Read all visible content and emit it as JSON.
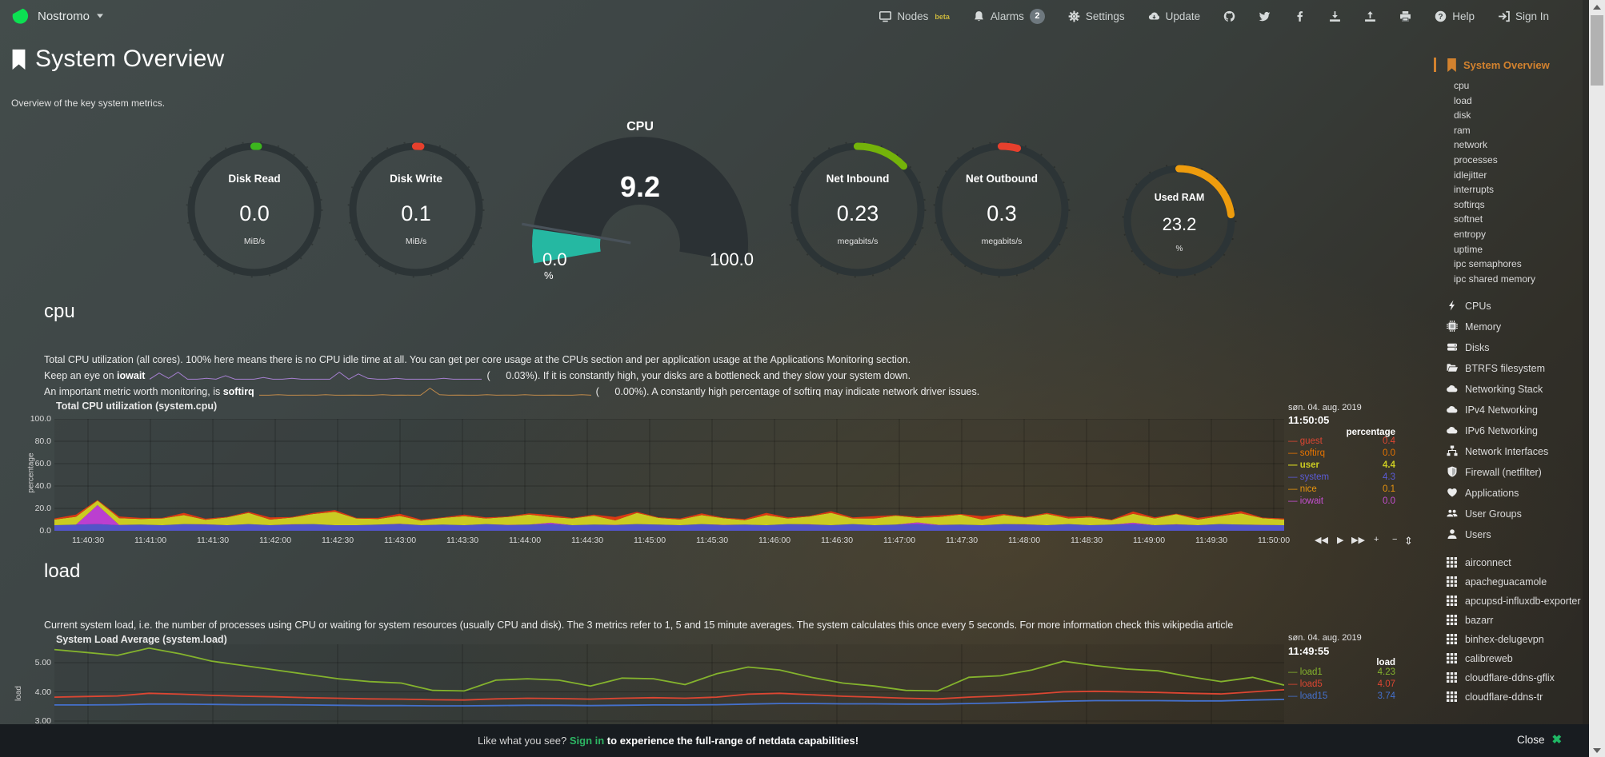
{
  "navbar": {
    "hostname": "Nostromo",
    "nodes": {
      "label": "Nodes",
      "beta": "beta"
    },
    "alarms": {
      "label": "Alarms",
      "count": "2"
    },
    "settings": {
      "label": "Settings"
    },
    "update": {
      "label": "Update"
    },
    "help": {
      "label": "Help"
    },
    "signin": {
      "label": "Sign In"
    }
  },
  "page": {
    "title": "System Overview",
    "subtitle": "Overview of the key system metrics."
  },
  "gauges": [
    {
      "label": "Disk Read",
      "value": "0.0",
      "unit": "MiB/s",
      "color": "#3cb51e",
      "percent": 1
    },
    {
      "label": "Disk Write",
      "value": "0.1",
      "unit": "MiB/s",
      "color": "#e6402d",
      "percent": 1.2
    },
    {
      "label": "Net Inbound",
      "value": "0.23",
      "unit": "megabits/s",
      "color": "#74b30a",
      "percent": 13
    },
    {
      "label": "Net Outbound",
      "value": "0.3",
      "unit": "megabits/s",
      "color": "#e6402d",
      "percent": 4
    },
    {
      "label": "Used RAM",
      "value": "23.2",
      "unit": "%",
      "color": "#ee9c0d",
      "percent": 23.2
    }
  ],
  "cpu_gauge": {
    "title": "CPU",
    "value": "9.2",
    "min": "0.0",
    "max": "100.0",
    "unit": "%",
    "percent": 9.2,
    "color": "#25b8a2"
  },
  "cpu_section": {
    "heading": "cpu",
    "desc1": "Total CPU utilization (all cores). 100% here means there is no CPU idle time at all. You can get per core usage at the CPUs section and per application usage at the Applications Monitoring section.",
    "line2": {
      "pre": "Keep an eye on ",
      "keyword": "iowait",
      "mid": "(",
      "value": "0.03",
      "post": "%). If it is constantly high, your disks are a bottleneck and they slow your system down."
    },
    "line3": {
      "pre": "An important metric worth monitoring, is ",
      "keyword": "softirq",
      "mid": "(",
      "value": "0.00",
      "post": "%). A constantly high percentage of softirq may indicate network driver issues."
    },
    "spark_iowait": {
      "color": "#a57fd0",
      "values": [
        0.1,
        0.8,
        0.2,
        0.9,
        0.1,
        0.1,
        0.2,
        0.1,
        0.5,
        0.1,
        0.1,
        0.1,
        0.3,
        0.1,
        0.1,
        0.2,
        0.1,
        0.1,
        0.1,
        0.1,
        0.9,
        0.1,
        0.7,
        0.2,
        0.1,
        0.1,
        0.2,
        0.1,
        0.1,
        0.1,
        0.1,
        0.2,
        0.1,
        0.1,
        0.1,
        0.1
      ]
    },
    "spark_softirq": {
      "color": "#c08a4a",
      "values": [
        0.1,
        0.1,
        0.15,
        0.1,
        0.1,
        0.12,
        0.1,
        0.15,
        0.1,
        0.1,
        0.12,
        0.1,
        0.1,
        0.15,
        0.1,
        0.12,
        0.1,
        0.1,
        0.9,
        0.15,
        0.1,
        0.12,
        0.1,
        0.1,
        0.15,
        0.1,
        0.12,
        0.1,
        0.15,
        0.1,
        0.1,
        0.12,
        0.1,
        0.1,
        0.15,
        0.1
      ]
    }
  },
  "load_section": {
    "heading": "load",
    "desc1": "Current system load, i.e. the number of processes using CPU or waiting for system resources (usually CPU and disk). The 3 metrics refer to 1, 5 and 15 minute averages. The system calculates this once every 5 seconds. For more information check this wikipedia article"
  },
  "chart_data": [
    {
      "id": "system.cpu",
      "type": "area",
      "stacked": true,
      "title": "Total CPU utilization (system.cpu)",
      "ylabel": "percentage",
      "unit_header": "percentage",
      "date": "søn. 04. aug. 2019",
      "time": "11:50:05",
      "ylim": [
        0,
        100
      ],
      "yticks": [
        {
          "v": 100,
          "label": "100.0"
        },
        {
          "v": 80,
          "label": "80.0"
        },
        {
          "v": 60,
          "label": "60.0"
        },
        {
          "v": 40,
          "label": "40.0"
        },
        {
          "v": 20,
          "label": "20.0"
        },
        {
          "v": 0,
          "label": "0.0"
        }
      ],
      "xticks": [
        "11:40:30",
        "11:41:00",
        "11:41:30",
        "11:42:00",
        "11:42:30",
        "11:43:00",
        "11:43:30",
        "11:44:00",
        "11:44:30",
        "11:45:00",
        "11:45:30",
        "11:46:00",
        "11:46:30",
        "11:47:00",
        "11:47:30",
        "11:48:00",
        "11:48:30",
        "11:49:00",
        "11:49:30",
        "11:50:00"
      ],
      "series": [
        {
          "name": "system",
          "color": "#5254c8",
          "values": [
            5,
            5.5,
            6,
            5,
            5.5,
            5,
            6,
            5.5,
            5,
            6,
            5,
            5.5,
            6,
            5,
            5,
            5.5,
            6,
            5,
            5.5,
            5,
            6,
            5,
            5.5,
            6,
            5,
            5.5,
            5,
            6,
            5.5,
            5,
            6,
            5,
            5.5,
            5,
            6,
            5.5,
            5,
            6,
            5,
            5.5,
            6,
            5,
            5.5,
            5,
            6,
            5.5,
            5,
            6,
            5,
            5.5,
            6,
            5,
            5.5,
            5,
            6,
            5.5,
            5,
            5
          ]
        },
        {
          "name": "iowait",
          "color": "#bb3fd0",
          "values": [
            0,
            0,
            17,
            0.3,
            0,
            0,
            0,
            0.3,
            0,
            0,
            0,
            0.3,
            0,
            0,
            0,
            0,
            0.3,
            0,
            0,
            0,
            0,
            0.3,
            0,
            1.2,
            0,
            0,
            0.3,
            0,
            0,
            0,
            0,
            0.3,
            0,
            0,
            0,
            0.3,
            0,
            0,
            0,
            0,
            1.5,
            0.3,
            0,
            0,
            0,
            0.3,
            0,
            0,
            0,
            0,
            1.2,
            0,
            0.3,
            0,
            0,
            0,
            0.3,
            0
          ]
        },
        {
          "name": "user",
          "color": "#cbcb22",
          "values": [
            5,
            7,
            4,
            6,
            5,
            6,
            8,
            4,
            7,
            10,
            5,
            6,
            9,
            12,
            6,
            5,
            7,
            4,
            6,
            8,
            5,
            7,
            9,
            5,
            6,
            8,
            4,
            10,
            6,
            5,
            8,
            6,
            4,
            9,
            5,
            7,
            11,
            5,
            6,
            8,
            4,
            7,
            9,
            5,
            8,
            6,
            10,
            5,
            7,
            4,
            8,
            6,
            9,
            5,
            7,
            10,
            6,
            5
          ]
        },
        {
          "name": "guest",
          "color": "#dc3912",
          "values": [
            1,
            2,
            0.5,
            1.5,
            1,
            0.5,
            2,
            1,
            0.5,
            1,
            2,
            0.5,
            1,
            1.5,
            0.5,
            1,
            2,
            1,
            0.5,
            1.5,
            1,
            0.5,
            1,
            2,
            0.5,
            1,
            3,
            1,
            0.5,
            1,
            1.5,
            0.5,
            1,
            2,
            1,
            0.5,
            1.5,
            1,
            2,
            0.5,
            1,
            1.5,
            0.5,
            3,
            1,
            0.5,
            1,
            1.5,
            1,
            0.5,
            2,
            1,
            0.5,
            1.5,
            1,
            2,
            0.5,
            1
          ]
        }
      ],
      "legend": [
        {
          "name": "guest",
          "value": "0.4",
          "color": "#dc4632",
          "bold": false
        },
        {
          "name": "softirq",
          "value": "0.0",
          "color": "#e67300",
          "bold": false
        },
        {
          "name": "user",
          "value": "4.4",
          "color": "#cbcb22",
          "bold": true
        },
        {
          "name": "system",
          "value": "4.3",
          "color": "#5b5bd6",
          "bold": false
        },
        {
          "name": "nice",
          "value": "0.1",
          "color": "#e8940e",
          "bold": false
        },
        {
          "name": "iowait",
          "value": "0.0",
          "color": "#c44fd0",
          "bold": false
        }
      ],
      "toolbar": [
        "◀◀",
        "▶",
        "▶▶",
        "+",
        "−"
      ],
      "resize_handle": "⇕"
    },
    {
      "id": "system.load",
      "type": "line",
      "stacked": false,
      "title": "System Load Average (system.load)",
      "ylabel": "load",
      "unit_header": "load",
      "date": "søn. 04. aug. 2019",
      "time": "11:49:55",
      "ylim": [
        2.9,
        5.65
      ],
      "yticks": [
        {
          "v": 5,
          "label": "5.00"
        },
        {
          "v": 4,
          "label": "4.00"
        },
        {
          "v": 3,
          "label": "3.00"
        }
      ],
      "xticks": [],
      "series": [
        {
          "name": "load1",
          "color": "#84b32d",
          "values": [
            5.45,
            5.35,
            5.25,
            5.5,
            5.3,
            5.05,
            4.9,
            4.75,
            4.6,
            4.45,
            4.35,
            4.3,
            4.05,
            4.03,
            4.4,
            4.45,
            4.4,
            4.2,
            4.47,
            4.45,
            4.25,
            4.62,
            4.85,
            4.75,
            4.5,
            4.3,
            4.2,
            4.05,
            4.03,
            4.5,
            4.55,
            4.75,
            5.05,
            4.9,
            4.78,
            4.72,
            4.52,
            4.35,
            4.5,
            4.23
          ]
        },
        {
          "name": "load5",
          "color": "#dc4632",
          "values": [
            3.82,
            3.84,
            3.86,
            3.95,
            3.92,
            3.88,
            3.85,
            3.83,
            3.8,
            3.78,
            3.76,
            3.75,
            3.73,
            3.72,
            3.76,
            3.78,
            3.77,
            3.75,
            3.78,
            3.8,
            3.78,
            3.82,
            3.92,
            3.95,
            3.9,
            3.85,
            3.82,
            3.78,
            3.76,
            3.82,
            3.86,
            3.92,
            4.0,
            4.02,
            4.0,
            3.98,
            3.95,
            3.93,
            4.0,
            4.07
          ]
        },
        {
          "name": "load15",
          "color": "#4470cc",
          "values": [
            3.55,
            3.55,
            3.56,
            3.58,
            3.58,
            3.57,
            3.56,
            3.56,
            3.55,
            3.54,
            3.53,
            3.53,
            3.52,
            3.52,
            3.53,
            3.54,
            3.54,
            3.53,
            3.54,
            3.55,
            3.55,
            3.56,
            3.58,
            3.6,
            3.6,
            3.59,
            3.59,
            3.58,
            3.58,
            3.6,
            3.62,
            3.65,
            3.68,
            3.7,
            3.7,
            3.7,
            3.69,
            3.69,
            3.72,
            3.74
          ]
        }
      ],
      "legend": [
        {
          "name": "load1",
          "value": "4.23",
          "color": "#84b32d",
          "bold": false
        },
        {
          "name": "load5",
          "value": "4.07",
          "color": "#dc4632",
          "bold": false
        },
        {
          "name": "load15",
          "value": "3.74",
          "color": "#4470cc",
          "bold": false
        }
      ],
      "toolbar": [],
      "resize_handle": ""
    }
  ],
  "sidebar": {
    "active": "System Overview",
    "sub_items": [
      "cpu",
      "load",
      "disk",
      "ram",
      "network",
      "processes",
      "idlejitter",
      "interrupts",
      "softirqs",
      "softnet",
      "entropy",
      "uptime",
      "ipc semaphores",
      "ipc shared memory"
    ],
    "sections": [
      {
        "icon": "bolt",
        "label": "CPUs"
      },
      {
        "icon": "memory",
        "label": "Memory"
      },
      {
        "icon": "disks",
        "label": "Disks"
      },
      {
        "icon": "folder",
        "label": "BTRFS filesystem"
      },
      {
        "icon": "cloud",
        "label": "Networking Stack"
      },
      {
        "icon": "cloud",
        "label": "IPv4 Networking"
      },
      {
        "icon": "cloud",
        "label": "IPv6 Networking"
      },
      {
        "icon": "sitemap",
        "label": "Network Interfaces"
      },
      {
        "icon": "shield",
        "label": "Firewall (netfilter)"
      },
      {
        "icon": "heart",
        "label": "Applications"
      },
      {
        "icon": "users",
        "label": "User Groups"
      },
      {
        "icon": "user",
        "label": "Users"
      }
    ],
    "services": [
      "airconnect",
      "apacheguacamole",
      "apcupsd-influxdb-exporter",
      "bazarr",
      "binhex-delugevpn",
      "calibreweb",
      "cloudflare-ddns-gflix",
      "cloudflare-ddns-tr"
    ]
  },
  "banner": {
    "pre": "Like what you see? ",
    "signin": "Sign in",
    "post": " to experience the full-range of netdata capabilities!",
    "close": "Close",
    "close_x": "✖"
  }
}
